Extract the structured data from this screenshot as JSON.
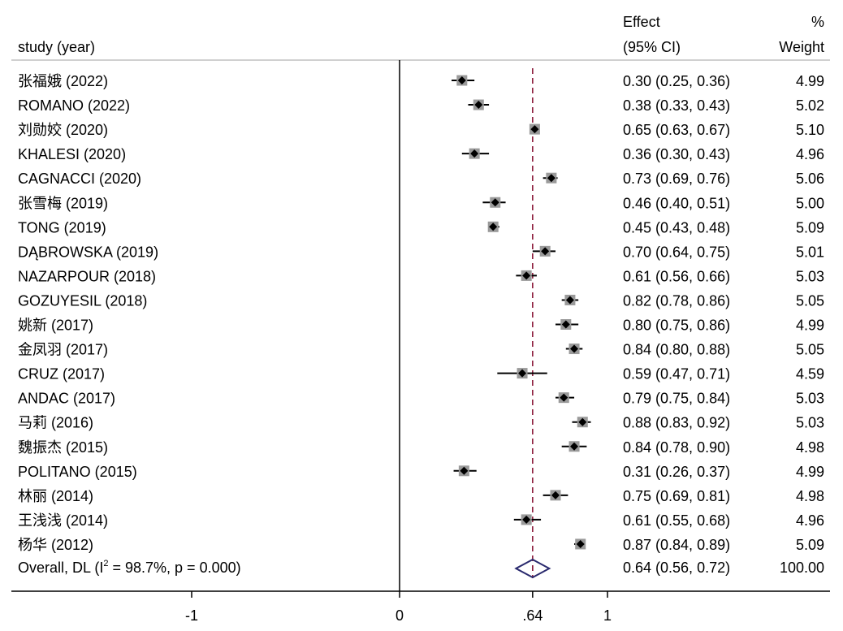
{
  "header": {
    "study_label": "study (year)",
    "effect_label_line1": "Effect",
    "effect_label_line2": "(95% CI)",
    "weight_label_line1": "%",
    "weight_label_line2": "Weight"
  },
  "colors": {
    "reference_line": "#8b1a3a",
    "diamond": "#2a2a6e",
    "marker": "#000000",
    "weight_box": "#9a9a9a",
    "axis": "#000000",
    "separator": "#c0c0c0"
  },
  "chart_data": {
    "type": "forest",
    "x_axis": {
      "ticks": [
        -1,
        0,
        0.64,
        1
      ],
      "tick_labels": [
        "-1",
        "0",
        ".64",
        "1"
      ]
    },
    "reference_line": 0.64,
    "studies": [
      {
        "label": "张福娥 (2022)",
        "effect": 0.3,
        "lower": 0.25,
        "upper": 0.36,
        "ci_text": "0.30 (0.25, 0.36)",
        "weight": "4.99"
      },
      {
        "label": "ROMANO (2022)",
        "effect": 0.38,
        "lower": 0.33,
        "upper": 0.43,
        "ci_text": "0.38 (0.33, 0.43)",
        "weight": "5.02"
      },
      {
        "label": "刘勋姣 (2020)",
        "effect": 0.65,
        "lower": 0.63,
        "upper": 0.67,
        "ci_text": "0.65 (0.63, 0.67)",
        "weight": "5.10"
      },
      {
        "label": "KHALESI (2020)",
        "effect": 0.36,
        "lower": 0.3,
        "upper": 0.43,
        "ci_text": "0.36 (0.30, 0.43)",
        "weight": "4.96"
      },
      {
        "label": "CAGNACCI (2020)",
        "effect": 0.73,
        "lower": 0.69,
        "upper": 0.76,
        "ci_text": "0.73 (0.69, 0.76)",
        "weight": "5.06"
      },
      {
        "label": "张雪梅 (2019)",
        "effect": 0.46,
        "lower": 0.4,
        "upper": 0.51,
        "ci_text": "0.46 (0.40, 0.51)",
        "weight": "5.00"
      },
      {
        "label": "TONG (2019)",
        "effect": 0.45,
        "lower": 0.43,
        "upper": 0.48,
        "ci_text": "0.45 (0.43, 0.48)",
        "weight": "5.09"
      },
      {
        "label": "DĄBROWSKA (2019)",
        "effect": 0.7,
        "lower": 0.64,
        "upper": 0.75,
        "ci_text": "0.70 (0.64, 0.75)",
        "weight": "5.01"
      },
      {
        "label": "NAZARPOUR (2018)",
        "effect": 0.61,
        "lower": 0.56,
        "upper": 0.66,
        "ci_text": "0.61 (0.56, 0.66)",
        "weight": "5.03"
      },
      {
        "label": "GOZUYESIL (2018)",
        "effect": 0.82,
        "lower": 0.78,
        "upper": 0.86,
        "ci_text": "0.82 (0.78, 0.86)",
        "weight": "5.05"
      },
      {
        "label": "姚新 (2017)",
        "effect": 0.8,
        "lower": 0.75,
        "upper": 0.86,
        "ci_text": "0.80 (0.75, 0.86)",
        "weight": "4.99"
      },
      {
        "label": "金凤羽 (2017)",
        "effect": 0.84,
        "lower": 0.8,
        "upper": 0.88,
        "ci_text": "0.84 (0.80, 0.88)",
        "weight": "5.05"
      },
      {
        "label": "CRUZ (2017)",
        "effect": 0.59,
        "lower": 0.47,
        "upper": 0.71,
        "ci_text": "0.59 (0.47, 0.71)",
        "weight": "4.59"
      },
      {
        "label": "ANDAC (2017)",
        "effect": 0.79,
        "lower": 0.75,
        "upper": 0.84,
        "ci_text": "0.79 (0.75, 0.84)",
        "weight": "5.03"
      },
      {
        "label": "马莉 (2016)",
        "effect": 0.88,
        "lower": 0.83,
        "upper": 0.92,
        "ci_text": "0.88 (0.83, 0.92)",
        "weight": "5.03"
      },
      {
        "label": "魏振杰 (2015)",
        "effect": 0.84,
        "lower": 0.78,
        "upper": 0.9,
        "ci_text": "0.84 (0.78, 0.90)",
        "weight": "4.98"
      },
      {
        "label": "POLITANO (2015)",
        "effect": 0.31,
        "lower": 0.26,
        "upper": 0.37,
        "ci_text": "0.31 (0.26, 0.37)",
        "weight": "4.99"
      },
      {
        "label": "林丽 (2014)",
        "effect": 0.75,
        "lower": 0.69,
        "upper": 0.81,
        "ci_text": "0.75 (0.69, 0.81)",
        "weight": "4.98"
      },
      {
        "label": "王浅浅 (2014)",
        "effect": 0.61,
        "lower": 0.55,
        "upper": 0.68,
        "ci_text": "0.61 (0.55, 0.68)",
        "weight": "4.96"
      },
      {
        "label": "杨华 (2012)",
        "effect": 0.87,
        "lower": 0.84,
        "upper": 0.89,
        "ci_text": "0.87 (0.84, 0.89)",
        "weight": "5.09"
      }
    ],
    "overall": {
      "label_prefix": "Overall, DL (I",
      "label_superscript": "2",
      "label_suffix": " = 98.7%, p = 0.000)",
      "effect": 0.64,
      "lower": 0.56,
      "upper": 0.72,
      "ci_text": "0.64 (0.56, 0.72)",
      "weight": "100.00"
    }
  }
}
